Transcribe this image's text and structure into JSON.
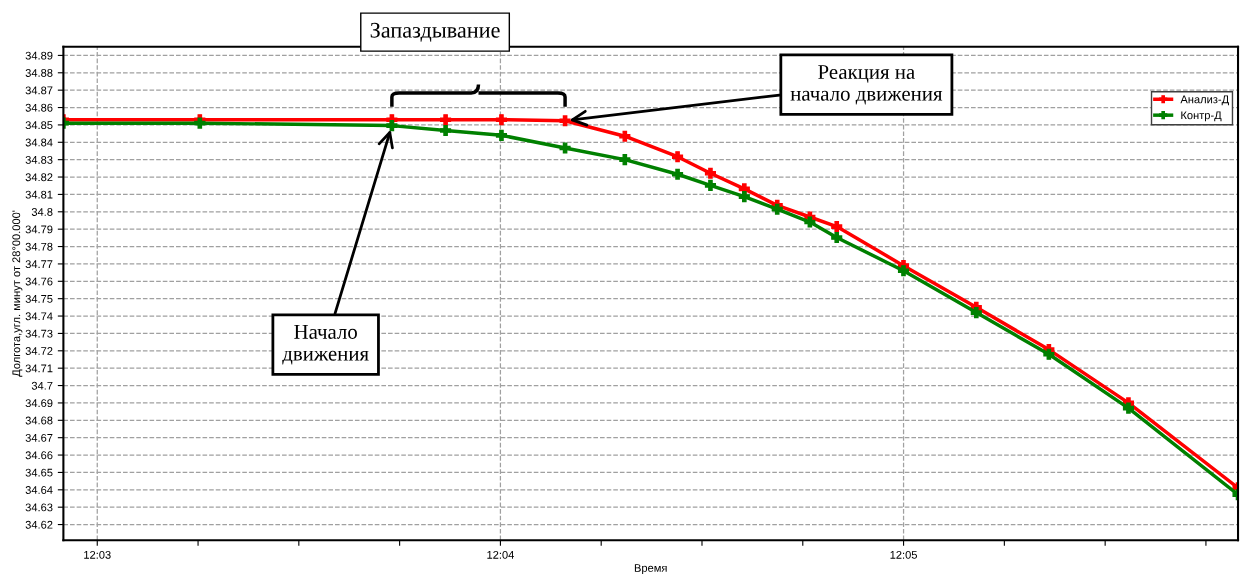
{
  "chart_data": {
    "type": "line",
    "xlabel": "Время",
    "ylabel": "Долгота,угл. минут от 28°00.000'",
    "x": [
      12.0486,
      12.05424,
      12.06218,
      12.0644,
      12.06671,
      12.06934,
      12.07181,
      12.07399,
      12.07535,
      12.07675,
      12.07811,
      12.07946,
      12.08057,
      12.08333,
      12.08634,
      12.08934,
      12.09263,
      12.09716
    ],
    "series": [
      {
        "name": "Анализ-Д",
        "color": "#ff0000",
        "values": [
          34.853,
          34.853,
          34.853,
          34.853,
          34.853,
          34.8524,
          34.8435,
          34.8317,
          34.8222,
          34.8132,
          34.8037,
          34.797,
          34.7915,
          34.769,
          34.745,
          34.7207,
          34.69,
          34.6411
        ]
      },
      {
        "name": "Контр-Д",
        "color": "#008000",
        "values": [
          34.851,
          34.851,
          34.8496,
          34.8468,
          34.844,
          34.8367,
          34.83,
          34.8216,
          34.8152,
          34.8087,
          34.8015,
          34.7941,
          34.7852,
          34.7661,
          34.742,
          34.718,
          34.687,
          34.6372
        ]
      }
    ],
    "marker": "cross",
    "line_style": "solid",
    "legend": "top right",
    "grid": true,
    "xlim": [
      12.0486,
      12.09716
    ],
    "ylim": [
      34.611,
      34.895
    ],
    "xticks": [
      {
        "value": 12.05,
        "label": "12:03"
      },
      {
        "value": 12.054167,
        "label": null
      },
      {
        "value": 12.058333,
        "label": null
      },
      {
        "value": 12.0625,
        "label": null
      },
      {
        "value": 12.066667,
        "label": "12:04"
      },
      {
        "value": 12.070833,
        "label": null
      },
      {
        "value": 12.075,
        "label": null
      },
      {
        "value": 12.079167,
        "label": null
      },
      {
        "value": 12.083333,
        "label": "12:05"
      },
      {
        "value": 12.0875,
        "label": null
      },
      {
        "value": 12.091667,
        "label": null
      },
      {
        "value": 12.095833,
        "label": null
      }
    ],
    "yticks": [
      34.62,
      34.63,
      34.64,
      34.65,
      34.66,
      34.67,
      34.68,
      34.69,
      {
        "value": 34.7,
        "label": "34.7"
      },
      34.71,
      34.72,
      34.73,
      34.74,
      34.75,
      34.76,
      34.77,
      34.78,
      34.79,
      {
        "value": 34.8,
        "label": "34.8"
      },
      34.81,
      34.82,
      34.83,
      34.84,
      34.85,
      34.86,
      34.87,
      34.88,
      34.89
    ],
    "annotations": [
      "Запаздывание",
      {
        "text": "Реакция на\nначало движения",
        "x": 12.06934,
        "y": 34.8524
      },
      {
        "text": "Начало\nдвижения",
        "x": 12.06218,
        "y": 34.8496
      }
    ]
  }
}
